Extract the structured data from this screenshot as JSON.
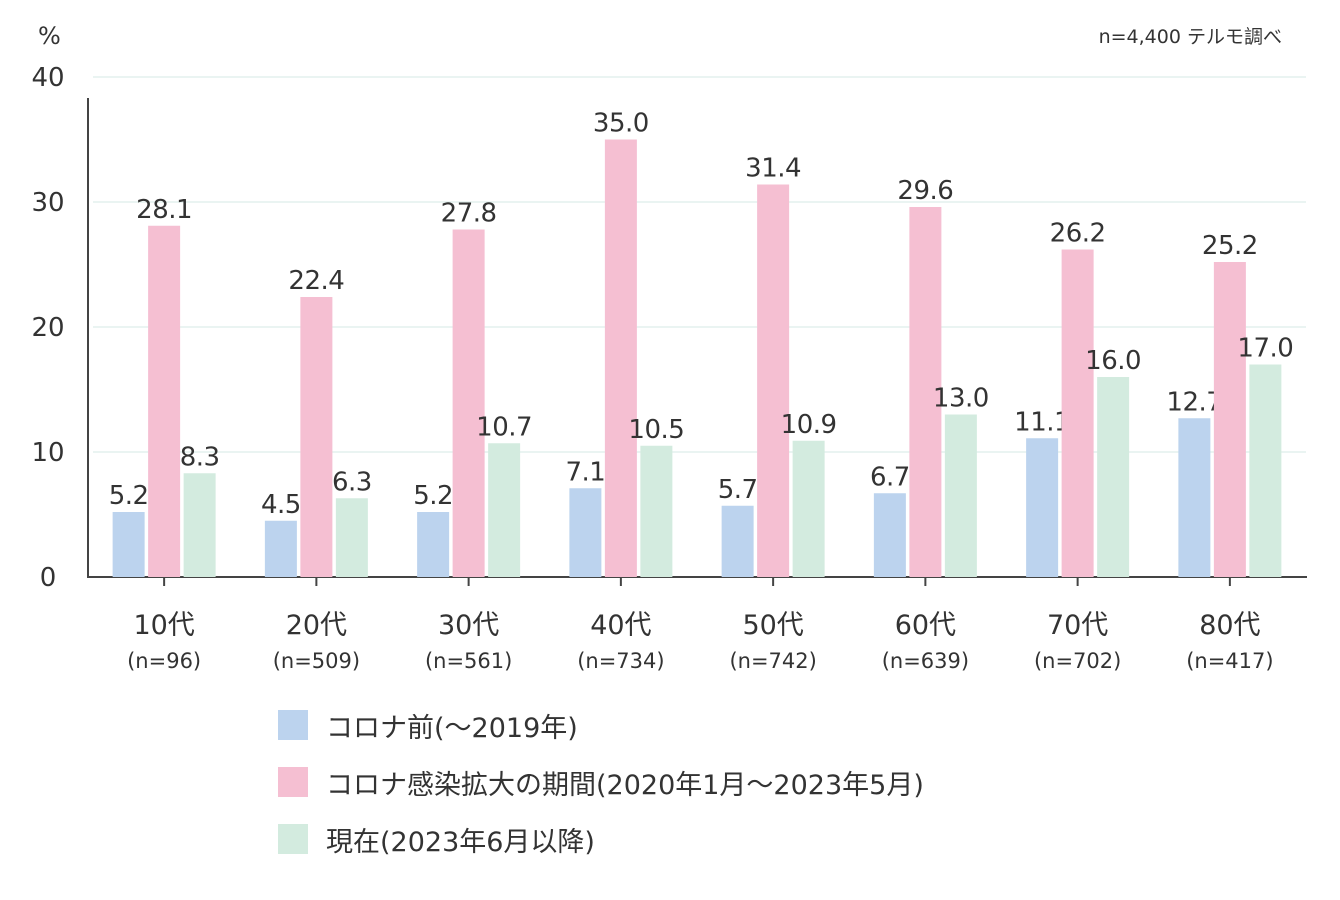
{
  "unit": "%",
  "note": "n=4,400 テルモ調べ",
  "chart_data": {
    "type": "bar",
    "categories": [
      "10代",
      "20代",
      "30代",
      "40代",
      "50代",
      "60代",
      "70代",
      "80代"
    ],
    "category_sublabels": [
      "(n=96)",
      "(n=509)",
      "(n=561)",
      "(n=734)",
      "(n=742)",
      "(n=639)",
      "(n=702)",
      "(n=417)"
    ],
    "series": [
      {
        "name": "コロナ前(〜2019年)",
        "color": "#bcd3ee",
        "values": [
          5.2,
          4.5,
          5.2,
          7.1,
          5.7,
          6.7,
          11.1,
          12.7
        ]
      },
      {
        "name": "コロナ感染拡大の期間(2020年1月〜2023年5月)",
        "color": "#f5bfd2",
        "values": [
          28.1,
          22.4,
          27.8,
          35.0,
          31.4,
          29.6,
          26.2,
          25.2
        ]
      },
      {
        "name": "現在(2023年6月以降)",
        "color": "#d3ebdf",
        "values": [
          8.3,
          6.3,
          10.7,
          10.5,
          10.9,
          13.0,
          16.0,
          17.0
        ]
      }
    ],
    "ylim": [
      0,
      40
    ],
    "yticks": [
      0,
      10,
      20,
      30,
      40
    ],
    "grid": true,
    "legend_position": "bottom"
  }
}
